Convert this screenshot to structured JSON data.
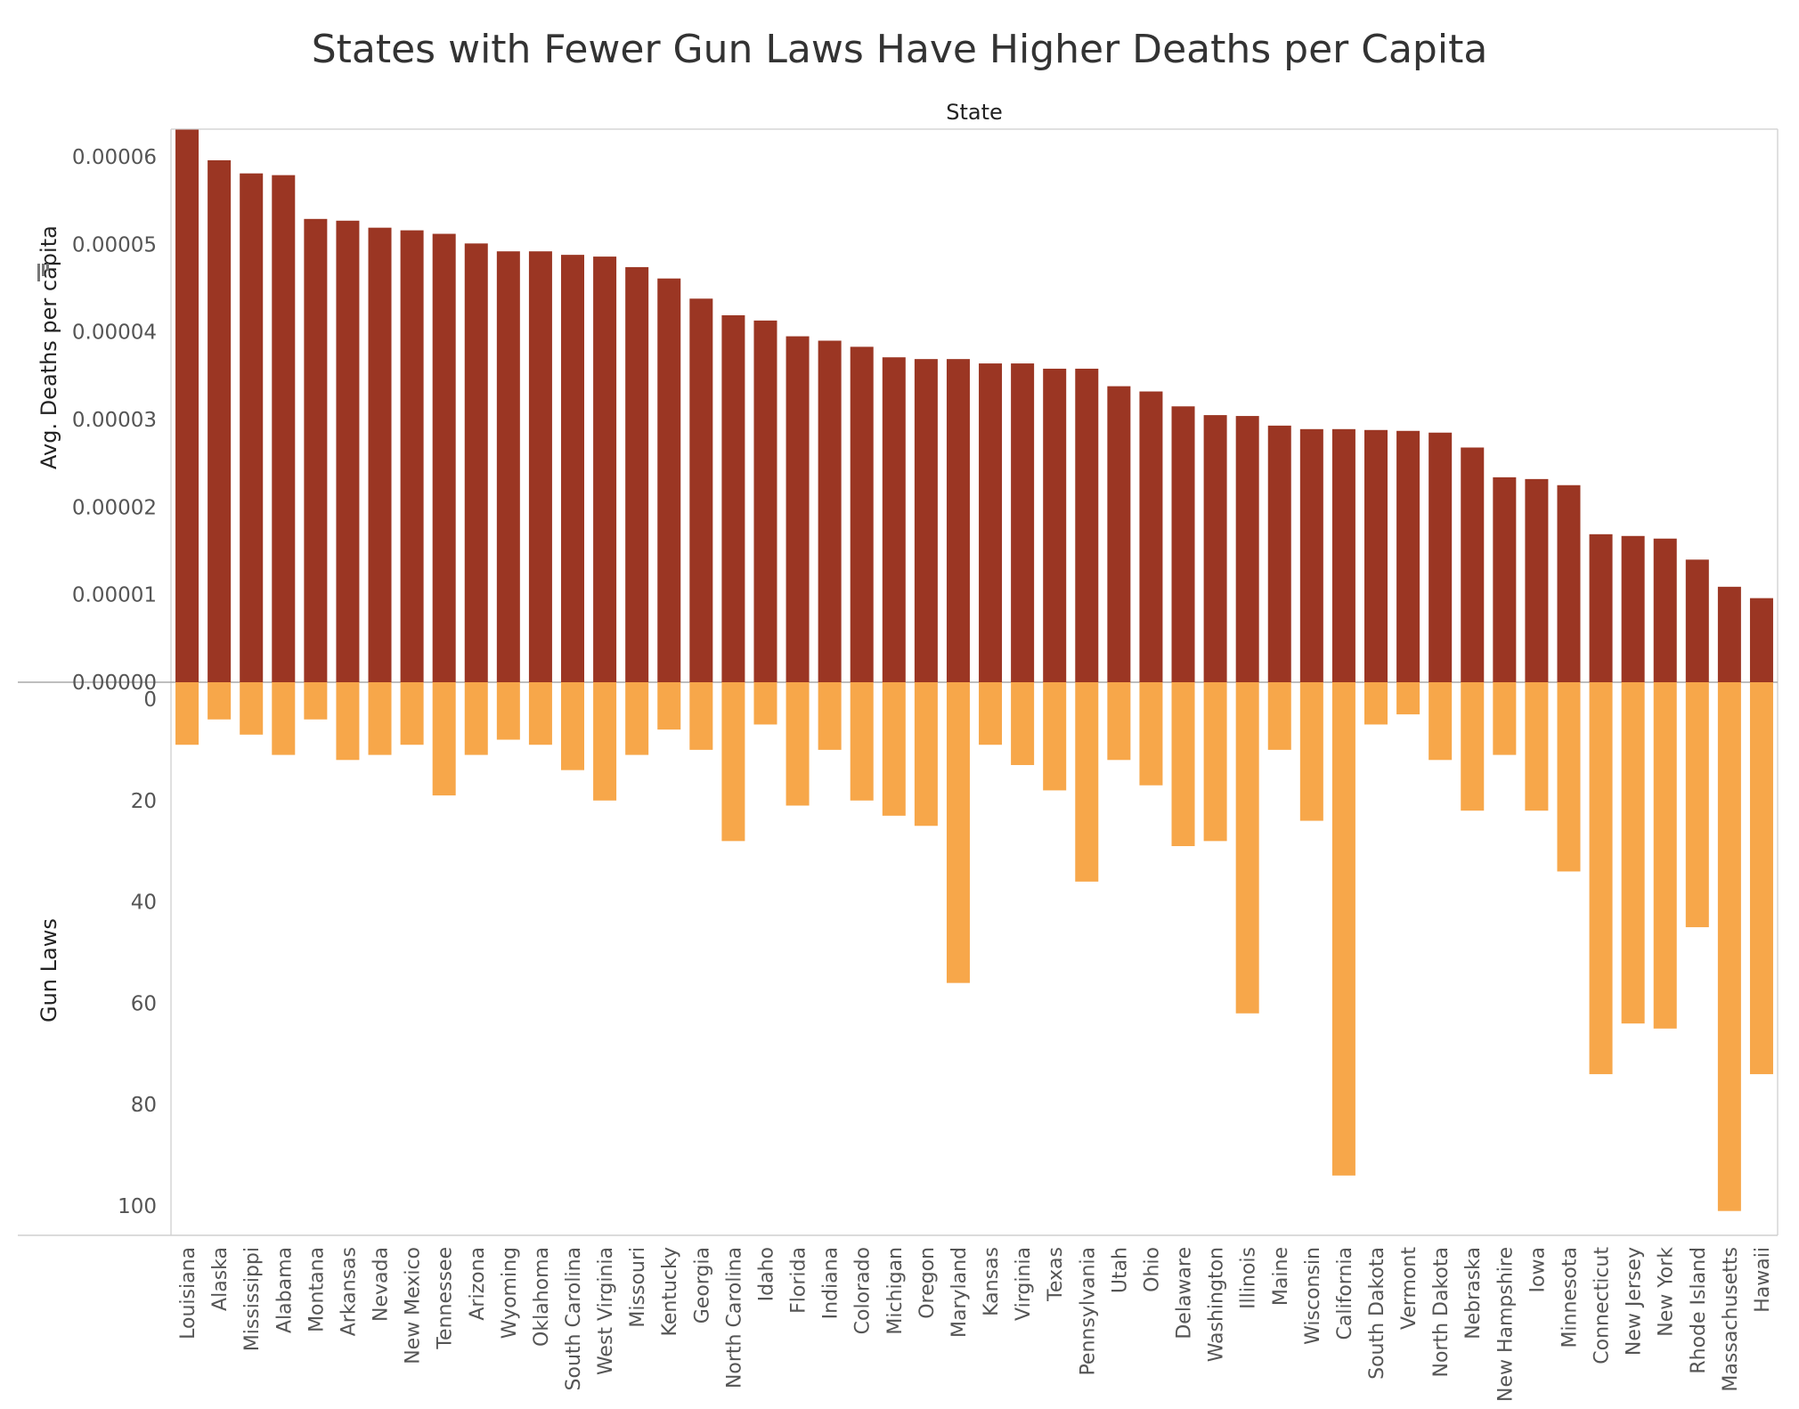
{
  "chart_data": {
    "type": "bar",
    "title": "States with Fewer Gun Laws Have Higher Deaths per Capita",
    "column_header": "State",
    "categories": [
      "Louisiana",
      "Alaska",
      "Mississippi",
      "Alabama",
      "Montana",
      "Arkansas",
      "Nevada",
      "New Mexico",
      "Tennessee",
      "Arizona",
      "Wyoming",
      "Oklahoma",
      "South Carolina",
      "West Virginia",
      "Missouri",
      "Kentucky",
      "Georgia",
      "North Carolina",
      "Idaho",
      "Florida",
      "Indiana",
      "Colorado",
      "Michigan",
      "Oregon",
      "Maryland",
      "Kansas",
      "Virginia",
      "Texas",
      "Pennsylvania",
      "Utah",
      "Ohio",
      "Delaware",
      "Washington",
      "Illinois",
      "Maine",
      "Wisconsin",
      "California",
      "South Dakota",
      "Vermont",
      "North Dakota",
      "Nebraska",
      "New Hampshire",
      "Iowa",
      "Minnesota",
      "Connecticut",
      "New Jersey",
      "New York",
      "Rhode Island",
      "Massachusetts",
      "Hawaii"
    ],
    "series": [
      {
        "name": "Avg. Deaths per capita",
        "ylabel": "Avg. Deaths per capita",
        "color": "#9b3623",
        "ylim": [
          0,
          6.6e-05
        ],
        "ticks": [
          "0.00000",
          "0.00001",
          "0.00002",
          "0.00003",
          "0.00004",
          "0.00005",
          "0.00006"
        ],
        "values": [
          6.31e-05,
          5.96e-05,
          5.81e-05,
          5.79e-05,
          5.29e-05,
          5.27e-05,
          5.19e-05,
          5.16e-05,
          5.12e-05,
          5.01e-05,
          4.92e-05,
          4.92e-05,
          4.88e-05,
          4.86e-05,
          4.74e-05,
          4.61e-05,
          4.38e-05,
          4.19e-05,
          4.13e-05,
          3.95e-05,
          3.9e-05,
          3.83e-05,
          3.71e-05,
          3.69e-05,
          3.69e-05,
          3.64e-05,
          3.64e-05,
          3.58e-05,
          3.58e-05,
          3.38e-05,
          3.32e-05,
          3.15e-05,
          3.05e-05,
          3.04e-05,
          2.93e-05,
          2.89e-05,
          2.89e-05,
          2.88e-05,
          2.87e-05,
          2.85e-05,
          2.68e-05,
          2.34e-05,
          2.32e-05,
          2.25e-05,
          1.69e-05,
          1.67e-05,
          1.64e-05,
          1.4e-05,
          1.09e-05,
          9.6e-06
        ]
      },
      {
        "name": "Gun Laws",
        "ylabel": "Gun Laws",
        "color": "#f7a74a",
        "ylim": [
          0,
          106
        ],
        "inverted": true,
        "ticks": [
          "0",
          "20",
          "40",
          "60",
          "80",
          "100"
        ],
        "values": [
          9,
          4,
          7,
          11,
          4,
          12,
          11,
          9,
          19,
          11,
          8,
          9,
          14,
          20,
          11,
          6,
          10,
          28,
          5,
          21,
          10,
          20,
          23,
          25,
          56,
          9,
          13,
          18,
          36,
          12,
          17,
          29,
          28,
          62,
          10,
          24,
          94,
          5,
          3,
          12,
          22,
          11,
          22,
          34,
          74,
          64,
          65,
          45,
          101,
          74
        ]
      }
    ]
  }
}
